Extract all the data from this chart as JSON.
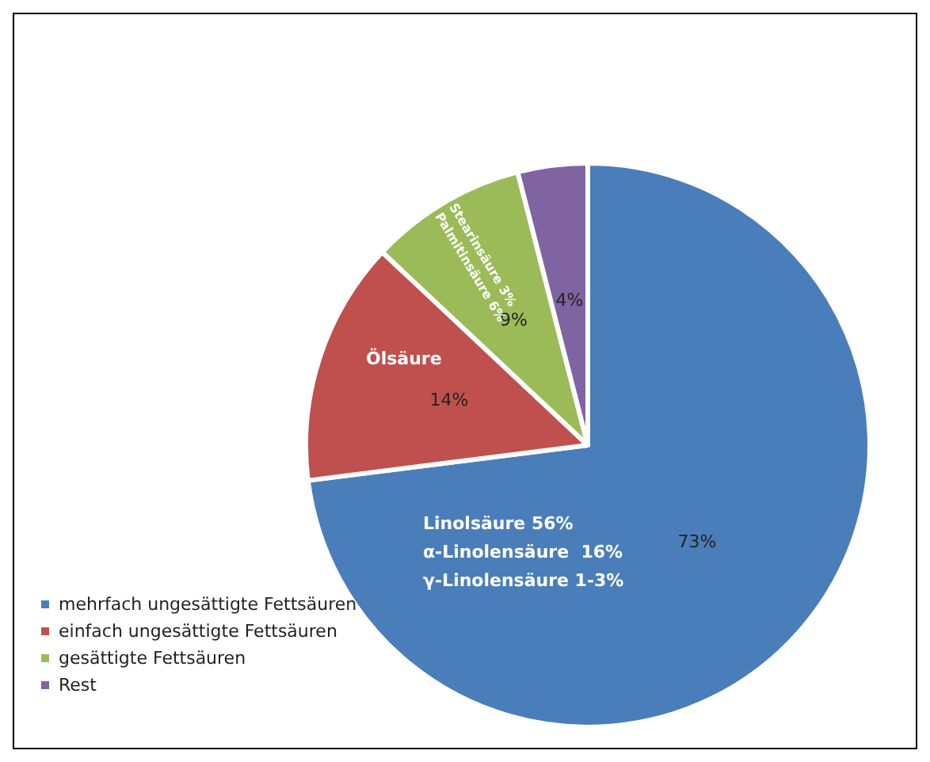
{
  "chart_data": {
    "type": "pie",
    "categories": [
      "mehrfach ungesättigte Fettsäuren",
      "einfach ungesättigte Fettsäuren",
      "gesättigte Fettsäuren",
      "Rest"
    ],
    "values": [
      73,
      14,
      9,
      4
    ],
    "value_labels": [
      "73%",
      "14%",
      "9%",
      "4%"
    ],
    "colors": [
      "#4a7ebb",
      "#c0504d",
      "#9bbb59",
      "#8064a2"
    ],
    "annotations": [
      "Linolsäure 56%",
      "α-Linolensäure  16%",
      "γ-Linolensäure 1-3%",
      "Ölsäure",
      "Stearinsäure 3%",
      "Palmitinsäure 6%"
    ],
    "legend": "left"
  }
}
